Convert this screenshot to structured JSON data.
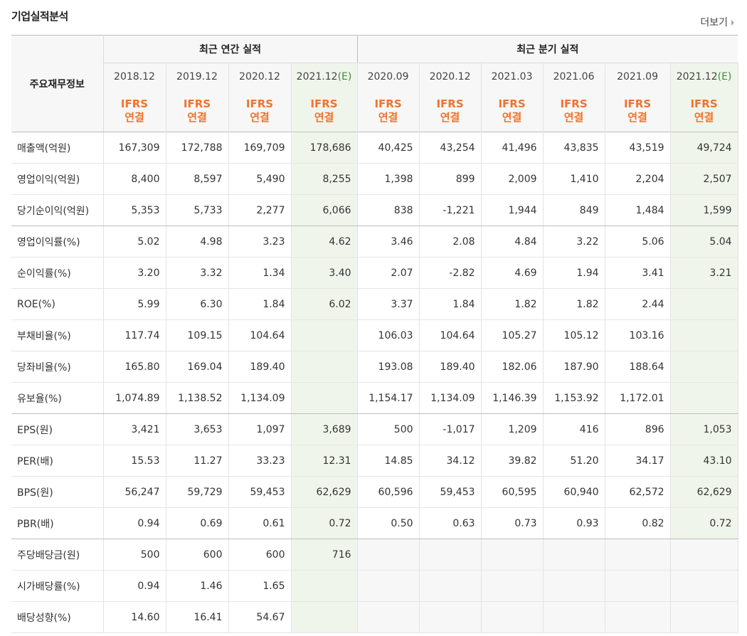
{
  "title": "기업실적분석",
  "more_label": "더보기",
  "header": {
    "row_label": "주요재무정보",
    "annual_group": "최근 연간 실적",
    "quarter_group": "최근 분기 실적",
    "annual_dates": [
      "2018.12",
      "2019.12",
      "2020.12",
      "2021.12"
    ],
    "annual_est_flag": "(E)",
    "quarter_dates": [
      "2020.09",
      "2020.12",
      "2021.03",
      "2021.06",
      "2021.09",
      "2021.12"
    ],
    "quarter_est_flag": "(E)",
    "ifrs_line1": "IFRS",
    "ifrs_line2": "연결"
  },
  "rows": [
    {
      "label": "매출액(억원)",
      "values": [
        "167,309",
        "172,788",
        "169,709",
        "178,686",
        "40,425",
        "43,254",
        "41,496",
        "43,835",
        "43,519",
        "49,724"
      ]
    },
    {
      "label": "영업이익(억원)",
      "values": [
        "8,400",
        "8,597",
        "5,490",
        "8,255",
        "1,398",
        "899",
        "2,009",
        "1,410",
        "2,204",
        "2,507"
      ]
    },
    {
      "label": "당기순이익(억원)",
      "values": [
        "5,353",
        "5,733",
        "2,277",
        "6,066",
        "838",
        "-1,221",
        "1,944",
        "849",
        "1,484",
        "1,599"
      ]
    },
    {
      "label": "영업이익률(%)",
      "values": [
        "5.02",
        "4.98",
        "3.23",
        "4.62",
        "3.46",
        "2.08",
        "4.84",
        "3.22",
        "5.06",
        "5.04"
      ]
    },
    {
      "label": "순이익률(%)",
      "values": [
        "3.20",
        "3.32",
        "1.34",
        "3.40",
        "2.07",
        "-2.82",
        "4.69",
        "1.94",
        "3.41",
        "3.21"
      ]
    },
    {
      "label": "ROE(%)",
      "values": [
        "5.99",
        "6.30",
        "1.84",
        "6.02",
        "3.37",
        "1.84",
        "1.82",
        "1.82",
        "2.44",
        ""
      ]
    },
    {
      "label": "부채비율(%)",
      "values": [
        "117.74",
        "109.15",
        "104.64",
        "",
        "106.03",
        "104.64",
        "105.27",
        "105.12",
        "103.16",
        ""
      ]
    },
    {
      "label": "당좌비율(%)",
      "values": [
        "165.80",
        "169.04",
        "189.40",
        "",
        "193.08",
        "189.40",
        "182.06",
        "187.90",
        "188.64",
        ""
      ]
    },
    {
      "label": "유보율(%)",
      "values": [
        "1,074.89",
        "1,138.52",
        "1,134.09",
        "",
        "1,154.17",
        "1,134.09",
        "1,146.39",
        "1,153.92",
        "1,172.01",
        ""
      ]
    },
    {
      "label": "EPS(원)",
      "values": [
        "3,421",
        "3,653",
        "1,097",
        "3,689",
        "500",
        "-1,017",
        "1,209",
        "416",
        "896",
        "1,053"
      ]
    },
    {
      "label": "PER(배)",
      "values": [
        "15.53",
        "11.27",
        "33.23",
        "12.31",
        "14.85",
        "34.12",
        "39.82",
        "51.20",
        "34.17",
        "43.10"
      ]
    },
    {
      "label": "BPS(원)",
      "values": [
        "56,247",
        "59,729",
        "59,453",
        "62,629",
        "60,596",
        "59,453",
        "60,595",
        "60,940",
        "62,572",
        "62,629"
      ]
    },
    {
      "label": "PBR(배)",
      "values": [
        "0.94",
        "0.69",
        "0.61",
        "0.72",
        "0.50",
        "0.63",
        "0.73",
        "0.93",
        "0.82",
        "0.72"
      ]
    },
    {
      "label": "주당배당금(원)",
      "values": [
        "500",
        "600",
        "600",
        "716",
        "",
        "",
        "",
        "",
        "",
        ""
      ]
    },
    {
      "label": "시가배당률(%)",
      "values": [
        "0.94",
        "1.46",
        "1.65",
        "",
        "",
        "",
        "",
        "",
        "",
        ""
      ]
    },
    {
      "label": "배당성향(%)",
      "values": [
        "14.60",
        "16.41",
        "54.67",
        "",
        "",
        "",
        "",
        "",
        "",
        ""
      ]
    }
  ],
  "colors": {
    "ifrs": "#f1732a",
    "negative": "#d41717",
    "estimate_bg": "#f0f5ec",
    "estimate_text": "#3d8e3d"
  }
}
